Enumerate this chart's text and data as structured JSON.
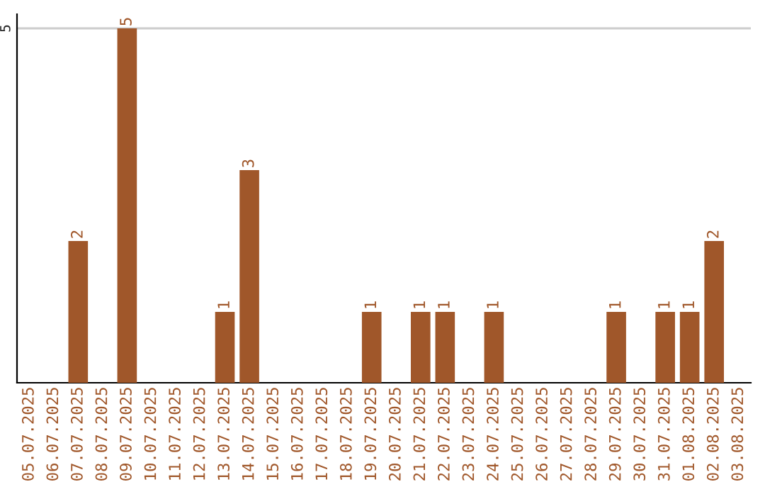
{
  "chart_data": {
    "type": "bar",
    "categories": [
      "05.07.2025",
      "06.07.2025",
      "07.07.2025",
      "08.07.2025",
      "09.07.2025",
      "10.07.2025",
      "11.07.2025",
      "12.07.2025",
      "13.07.2025",
      "14.07.2025",
      "15.07.2025",
      "16.07.2025",
      "17.07.2025",
      "18.07.2025",
      "19.07.2025",
      "20.07.2025",
      "21.07.2025",
      "22.07.2025",
      "23.07.2025",
      "24.07.2025",
      "25.07.2025",
      "26.07.2025",
      "27.07.2025",
      "28.07.2025",
      "29.07.2025",
      "30.07.2025",
      "31.07.2025",
      "01.08.2025",
      "02.08.2025",
      "03.08.2025"
    ],
    "values": [
      null,
      null,
      2,
      null,
      5,
      null,
      null,
      null,
      1,
      3,
      null,
      null,
      null,
      null,
      1,
      null,
      1,
      1,
      null,
      1,
      null,
      null,
      null,
      null,
      1,
      null,
      1,
      1,
      2,
      null
    ],
    "value_labels": [
      null,
      null,
      "2",
      null,
      "5",
      null,
      null,
      null,
      "1",
      "3",
      null,
      null,
      null,
      null,
      "1",
      null,
      "1",
      "1",
      null,
      "1",
      null,
      null,
      null,
      null,
      "1",
      null,
      "1",
      "1",
      "2",
      null
    ],
    "color": "#a0572a",
    "ylim": [
      0,
      5.2
    ],
    "yticks": [
      5
    ],
    "grid": "y"
  }
}
